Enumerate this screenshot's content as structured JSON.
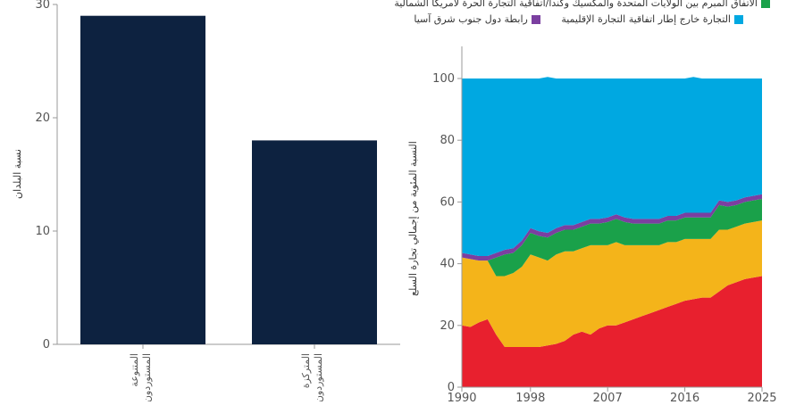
{
  "colors": {
    "bar": "#0d2240",
    "axis": "#9a9a9a",
    "tick_text": "#555555",
    "asean": "#7b3fa0",
    "usmca": "#1aa14a",
    "eu": "#f4b41a",
    "other_rta": "#e8202e",
    "outside": "#00a8e1"
  },
  "legend": {
    "usmca": "الاتفاق المبرم بين الولايات المتحدة والمكسيك وكندا/اتفاقية التجارة الحرة لأمريكا الشمالية",
    "outside": "التجارة خارج إطار اتفاقية التجارة الإقليمية",
    "asean": "رابطة دول جنوب شرق آسيا"
  },
  "chart_data": [
    {
      "type": "bar",
      "ylabel": "نسبة البلدان",
      "ylim": [
        0,
        30
      ],
      "yticks": [
        0,
        10,
        20,
        30
      ],
      "categories": [
        [
          "المستوردون ذو",
          "المتنوعة"
        ],
        [
          "المستوردون ذو",
          "المتركزة"
        ]
      ],
      "values": [
        29,
        18
      ]
    },
    {
      "type": "area",
      "stacked": true,
      "ylabel_lines": [
        "النسبة المئوية من إجمالي تجارة السلع"
      ],
      "xlim": [
        1990,
        2025
      ],
      "ylim": [
        0,
        100
      ],
      "xticks": [
        1990,
        1998,
        2007,
        2016,
        2025
      ],
      "yticks": [
        0,
        20,
        40,
        60,
        80,
        100
      ],
      "x": [
        1990,
        1991,
        1992,
        1993,
        1994,
        1995,
        1996,
        1997,
        1998,
        1999,
        2000,
        2001,
        2002,
        2003,
        2004,
        2005,
        2006,
        2007,
        2008,
        2009,
        2010,
        2011,
        2012,
        2013,
        2014,
        2015,
        2016,
        2017,
        2018,
        2019,
        2020,
        2021,
        2022,
        2023,
        2024,
        2025
      ],
      "series": [
        {
          "key": "other_rta",
          "values": [
            20,
            19.5,
            21,
            22,
            17,
            13,
            13,
            13,
            13,
            13,
            13.5,
            14,
            15,
            17,
            18,
            17,
            19,
            20,
            20,
            21,
            22,
            23,
            24,
            25,
            26,
            27,
            28,
            28.5,
            29,
            29,
            31,
            33,
            34,
            35,
            35.5,
            36
          ]
        },
        {
          "key": "eu",
          "values": [
            22,
            22,
            20,
            19,
            19,
            23,
            24,
            26,
            30,
            29,
            27.5,
            29,
            29,
            27,
            27,
            29,
            27,
            26,
            27,
            25,
            24,
            23,
            22,
            21,
            21,
            20,
            20,
            19.5,
            19,
            19,
            20,
            18,
            18,
            18,
            18,
            18
          ]
        },
        {
          "key": "usmca",
          "values": [
            0,
            0,
            0,
            0,
            6,
            7,
            6.5,
            7,
            7,
            7,
            7.5,
            7,
            7,
            7,
            7,
            7,
            7,
            7.5,
            7.5,
            7.5,
            7,
            7,
            7,
            7,
            7,
            7,
            7,
            7,
            7,
            7,
            8,
            7.5,
            7,
            7,
            7,
            7
          ]
        },
        {
          "key": "asean",
          "values": [
            1.5,
            1.5,
            1.5,
            1.5,
            1.5,
            1.5,
            1.5,
            1.5,
            1.5,
            1.5,
            1.5,
            1.5,
            1.5,
            1.5,
            1.5,
            1.5,
            1.5,
            1.5,
            1.5,
            1.5,
            1.5,
            1.5,
            1.5,
            1.5,
            1.5,
            1.5,
            1.5,
            1.5,
            1.5,
            1.5,
            1.5,
            1.5,
            1.5,
            1.5,
            1.5,
            1.5
          ]
        },
        {
          "key": "outside",
          "values": [
            56.5,
            57,
            57.5,
            57.5,
            56.5,
            55.5,
            55,
            52.5,
            48.5,
            49.5,
            50.5,
            48.5,
            47.5,
            47.5,
            46.5,
            45.5,
            45.5,
            45,
            44,
            45,
            45.5,
            45.5,
            45.5,
            45.5,
            44.5,
            44.5,
            43.5,
            44,
            43.5,
            43.5,
            39.5,
            40,
            39.5,
            38.5,
            38,
            37.5
          ]
        }
      ]
    }
  ]
}
